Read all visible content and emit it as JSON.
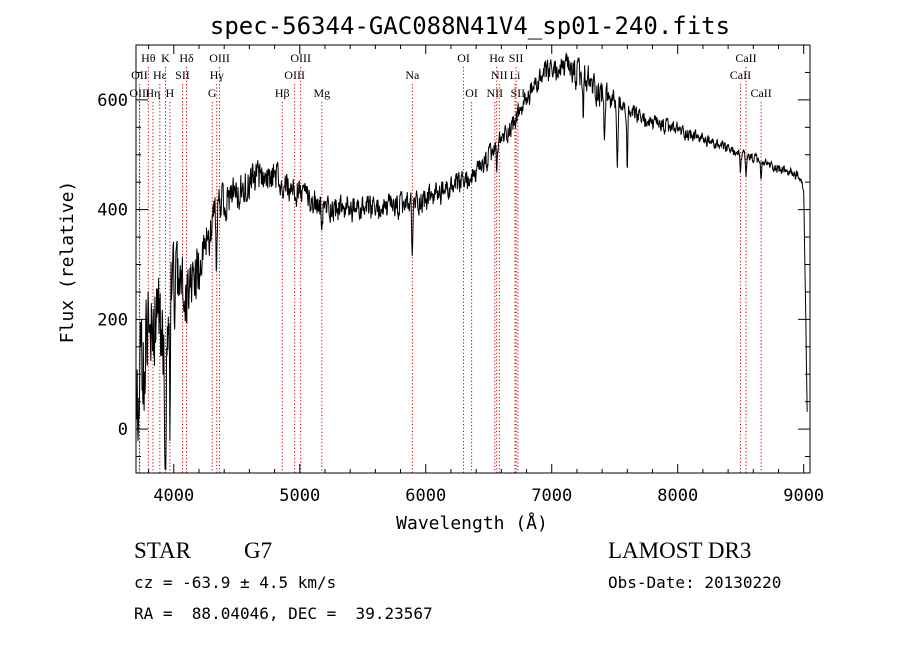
{
  "chart_data": {
    "type": "line",
    "title": "spec-56344-GAC088N41V4_sp01-240.fits",
    "xlabel": "Wavelength (Å)",
    "ylabel": "Flux (relative)",
    "xlim": [
      3700,
      9050
    ],
    "ylim": [
      -80,
      700
    ],
    "xticks": [
      4000,
      5000,
      6000,
      7000,
      8000,
      9000
    ],
    "yticks": [
      0,
      200,
      400,
      600
    ],
    "continuum": [
      [
        3700,
        60
      ],
      [
        3760,
        120
      ],
      [
        3820,
        190
      ],
      [
        3870,
        230
      ],
      [
        3930,
        120
      ],
      [
        3980,
        250
      ],
      [
        4050,
        260
      ],
      [
        4150,
        270
      ],
      [
        4250,
        330
      ],
      [
        4330,
        395
      ],
      [
        4450,
        420
      ],
      [
        4600,
        455
      ],
      [
        4800,
        460
      ],
      [
        5000,
        430
      ],
      [
        5200,
        405
      ],
      [
        5400,
        400
      ],
      [
        5600,
        400
      ],
      [
        5800,
        405
      ],
      [
        6000,
        420
      ],
      [
        6200,
        438
      ],
      [
        6400,
        462
      ],
      [
        6550,
        510
      ],
      [
        6700,
        560
      ],
      [
        6850,
        620
      ],
      [
        6950,
        648
      ],
      [
        7100,
        658
      ],
      [
        7250,
        638
      ],
      [
        7400,
        612
      ],
      [
        7600,
        578
      ],
      [
        7800,
        556
      ],
      [
        8000,
        546
      ],
      [
        8200,
        528
      ],
      [
        8400,
        510
      ],
      [
        8600,
        493
      ],
      [
        8800,
        475
      ],
      [
        8950,
        462
      ],
      [
        9000,
        440
      ],
      [
        9030,
        0
      ]
    ],
    "noise": [
      [
        3700,
        150
      ],
      [
        3950,
        140
      ],
      [
        4200,
        70
      ],
      [
        4450,
        55
      ],
      [
        5000,
        40
      ],
      [
        6000,
        38
      ],
      [
        6800,
        30
      ],
      [
        7300,
        50
      ],
      [
        7600,
        28
      ],
      [
        8500,
        14
      ],
      [
        9030,
        14
      ]
    ],
    "absorption": [
      {
        "at": 3934,
        "depth": 230
      },
      {
        "at": 3969,
        "depth": 200
      },
      {
        "at": 4101,
        "depth": 60
      },
      {
        "at": 4340,
        "depth": 110
      },
      {
        "at": 4861,
        "depth": 50
      },
      {
        "at": 5175,
        "depth": 60
      },
      {
        "at": 5893,
        "depth": 100
      },
      {
        "at": 6563,
        "depth": 40
      },
      {
        "at": 7250,
        "depth": 70
      },
      {
        "at": 7420,
        "depth": 80
      },
      {
        "at": 7520,
        "depth": 120
      },
      {
        "at": 7600,
        "depth": 100
      },
      {
        "at": 8498,
        "depth": 35
      },
      {
        "at": 8542,
        "depth": 40
      },
      {
        "at": 8662,
        "depth": 35
      }
    ],
    "lines": [
      {
        "label": "Hθ",
        "wavelength": 3798,
        "row": 0
      },
      {
        "label": "OII",
        "wavelength": 3727,
        "row": 1
      },
      {
        "label": "OIII",
        "wavelength": 3729,
        "row": 2
      },
      {
        "label": "Hη",
        "wavelength": 3835,
        "row": 2
      },
      {
        "label": "Hε",
        "wavelength": 3889,
        "row": 1
      },
      {
        "label": "K",
        "wavelength": 3934,
        "row": 0
      },
      {
        "label": "SII",
        "wavelength": 4069,
        "row": 1
      },
      {
        "label": "H",
        "wavelength": 3969,
        "row": 2
      },
      {
        "label": "Hδ",
        "wavelength": 4101,
        "row": 0
      },
      {
        "label": "OIII",
        "wavelength": 4363,
        "row": 0
      },
      {
        "label": "Hγ",
        "wavelength": 4341,
        "row": 1
      },
      {
        "label": "G",
        "wavelength": 4305,
        "row": 2
      },
      {
        "label": "Hβ",
        "wavelength": 4861,
        "row": 2
      },
      {
        "label": "OIII",
        "wavelength": 4959,
        "row": 1
      },
      {
        "label": "OIII",
        "wavelength": 5007,
        "row": 0
      },
      {
        "label": "Mg",
        "wavelength": 5175,
        "row": 2
      },
      {
        "label": "Na",
        "wavelength": 5894,
        "row": 1
      },
      {
        "label": "OI",
        "wavelength": 6300,
        "row": 0
      },
      {
        "label": "OI",
        "wavelength": 6364,
        "row": 2
      },
      {
        "label": "NII",
        "wavelength": 6548,
        "row": 2
      },
      {
        "label": "Hα",
        "wavelength": 6563,
        "row": 0
      },
      {
        "label": "NII",
        "wavelength": 6584,
        "row": 1
      },
      {
        "label": "Li",
        "wavelength": 6708,
        "row": 1
      },
      {
        "label": "SII",
        "wavelength": 6717,
        "row": 0
      },
      {
        "label": "SII",
        "wavelength": 6731,
        "row": 2
      },
      {
        "label": "CaII",
        "wavelength": 8498,
        "row": 1
      },
      {
        "label": "CaII",
        "wavelength": 8542,
        "row": 0
      },
      {
        "label": "CaII",
        "wavelength": 8662,
        "row": 2
      }
    ],
    "line_color": "#cc0000",
    "curve_color": "#000000"
  },
  "info": {
    "object_class": "STAR",
    "subclass": "G7",
    "survey": "LAMOST DR3",
    "velocity": "cz = -63.9 ± 4.5 km/s",
    "obs_date": "Obs-Date: 20130220",
    "coords": "RA =  88.04046, DEC =  39.23567"
  }
}
